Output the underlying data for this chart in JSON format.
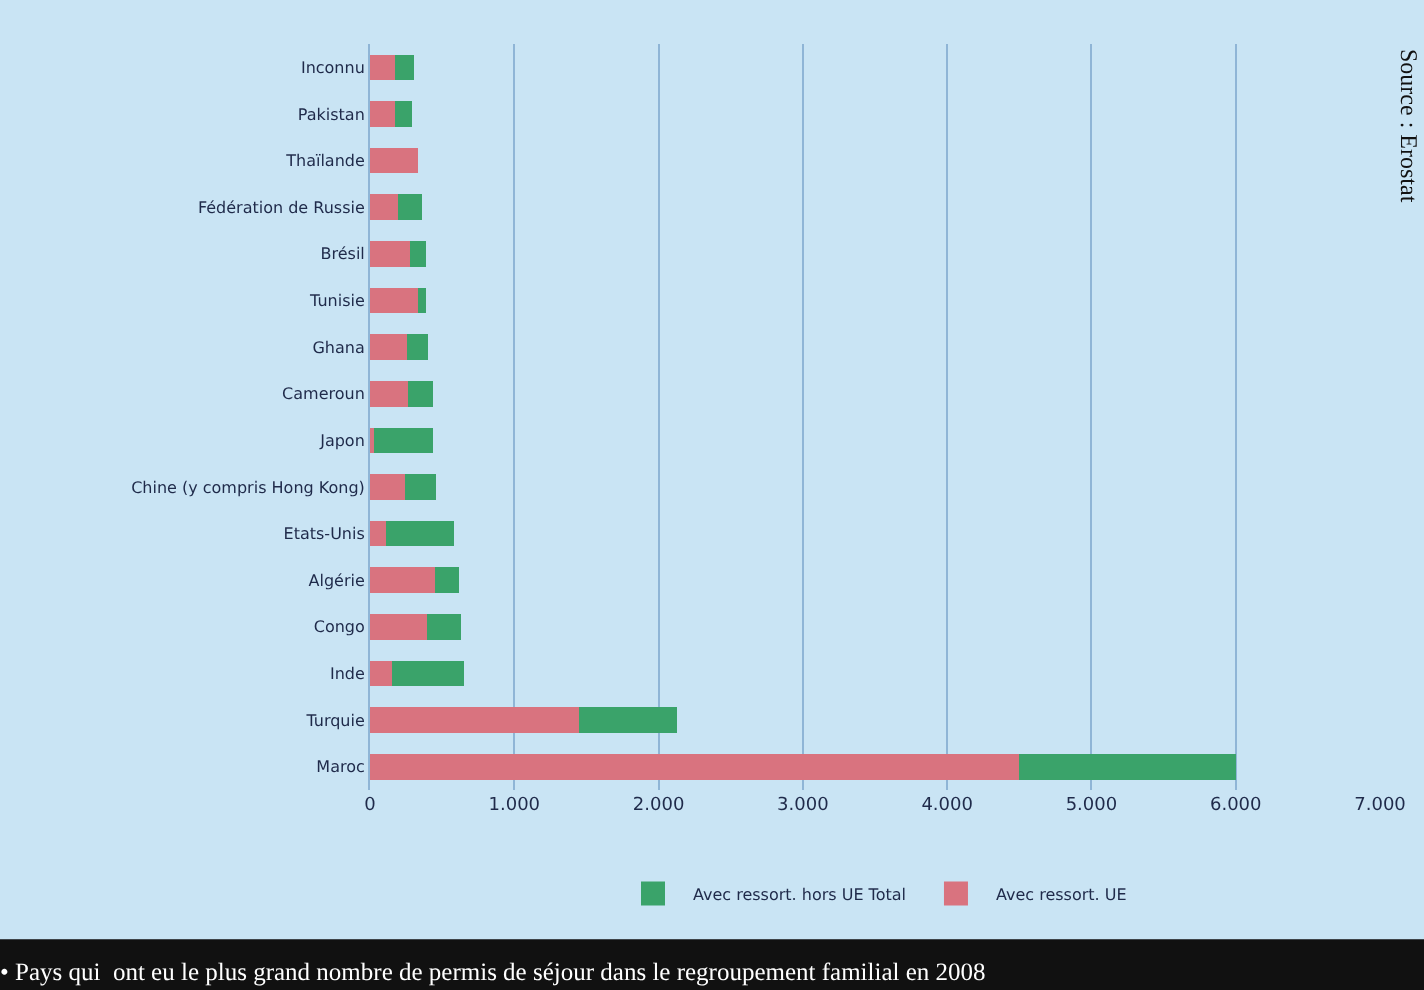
{
  "chart_data": {
    "type": "bar",
    "orientation": "horizontal",
    "stacked": true,
    "categories": [
      "Inconnu",
      "Pakistan",
      "Thaïlande",
      "Fédération de Russie",
      "Brésil",
      "Tunisie",
      "Ghana",
      "Cameroun",
      "Japon",
      "Chine (y compris Hong Kong)",
      "Etats-Unis",
      "Algérie",
      "Congo",
      "Inde",
      "Turquie",
      "Maroc"
    ],
    "series": [
      {
        "name": "Avec ressort. UE",
        "color": "#d9737f",
        "values": [
          170,
          170,
          335,
          195,
          280,
          330,
          255,
          265,
          30,
          240,
          110,
          450,
          395,
          155,
          1450,
          4500
        ]
      },
      {
        "name": "Avec ressort. hors UE Total",
        "color": "#3aa36a",
        "values": [
          135,
          120,
          0,
          165,
          110,
          60,
          145,
          175,
          410,
          220,
          470,
          165,
          235,
          495,
          680,
          1500
        ]
      }
    ],
    "xlim": [
      0,
      7000
    ],
    "xticks": [
      0,
      {
        "value": 1000,
        "label": "1.000"
      },
      {
        "value": 2000,
        "label": "2.000"
      },
      {
        "value": 3000,
        "label": "3.000"
      },
      {
        "value": 4000,
        "label": "4.000"
      },
      {
        "value": 5000,
        "label": "5.000"
      },
      {
        "value": 6000,
        "label": "6.000"
      },
      {
        "value": 7000,
        "label": "7.000"
      }
    ],
    "grid": "x",
    "legend": "bottom",
    "annotations": [
      "Source : Erostat",
      "• Pays qui  ont eu le plus grand nombre de permis de séjour dans le regroupement familial en 2008"
    ]
  }
}
